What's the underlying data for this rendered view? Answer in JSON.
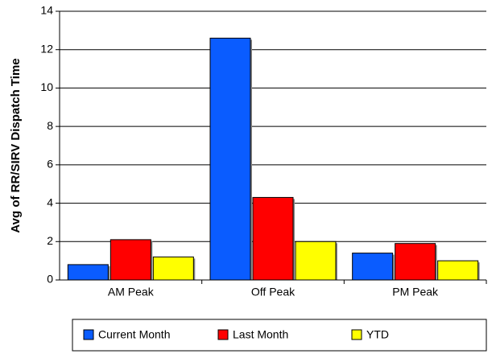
{
  "chart_data": {
    "type": "bar",
    "y_label": "Avg of RR/SIRV Dispatch Time",
    "categories": [
      "AM Peak",
      "Off Peak",
      "PM Peak"
    ],
    "series": [
      {
        "name": "Current Month",
        "color": "#0a5cff",
        "values": [
          0.8,
          12.6,
          1.4
        ]
      },
      {
        "name": "Last Month",
        "color": "#ff0000",
        "values": [
          2.1,
          4.3,
          1.9
        ]
      },
      {
        "name": "YTD",
        "color": "#ffff00",
        "values": [
          1.2,
          2.0,
          1.0
        ]
      }
    ],
    "ylim": [
      0,
      14
    ],
    "yticks": [
      0,
      2,
      4,
      6,
      8,
      10,
      12,
      14
    ],
    "grid": true,
    "legend": "bottom"
  }
}
